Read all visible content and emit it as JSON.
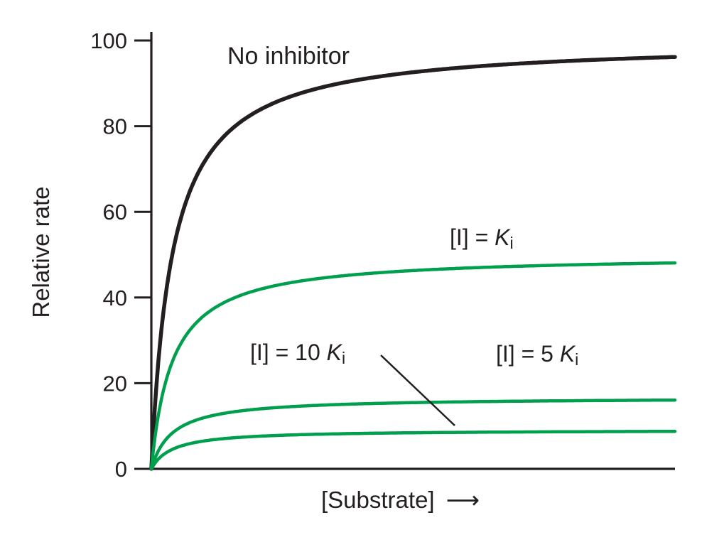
{
  "chart_data": {
    "type": "line",
    "title": "",
    "xlabel": "[Substrate]",
    "xlabel_arrow": "⟶",
    "ylabel": "Relative rate",
    "ylim": [
      0,
      100
    ],
    "yticks": [
      0,
      20,
      40,
      60,
      80,
      100
    ],
    "x_range": [
      0,
      10
    ],
    "grid": false,
    "legend_position": "inline-annotations",
    "model": "michaelis_menten",
    "km": 0.4,
    "x_samples": [
      0,
      0.1,
      0.2,
      0.3,
      0.5,
      0.75,
      1,
      1.5,
      2,
      3,
      4,
      5,
      6,
      7,
      8,
      9,
      10
    ],
    "series": [
      {
        "id": "no-inhibitor",
        "name": "No inhibitor",
        "vmax": 100,
        "color": "#231f20",
        "stroke_width": 5.5,
        "values": [
          0,
          20,
          33.3,
          42.9,
          55.6,
          65.2,
          71.4,
          78.9,
          83.3,
          88.2,
          90.9,
          92.6,
          93.8,
          94.6,
          95.2,
          95.7,
          96.2
        ]
      },
      {
        "id": "ki",
        "name": "[I] = Ki",
        "vmax": 50,
        "color": "#009f4d",
        "stroke_width": 4.5,
        "values": [
          0,
          10,
          16.7,
          21.4,
          27.8,
          32.6,
          35.7,
          39.5,
          41.7,
          44.1,
          45.5,
          46.3,
          46.9,
          47.3,
          47.6,
          47.9,
          48.1
        ]
      },
      {
        "id": "ki5",
        "name": "[I] = 5 Ki",
        "vmax": 16.7,
        "color": "#009f4d",
        "stroke_width": 4.5,
        "values": [
          0,
          3.3,
          5.6,
          7.1,
          9.3,
          10.9,
          11.9,
          13.2,
          13.9,
          14.7,
          15.2,
          15.4,
          15.6,
          15.8,
          15.9,
          16,
          16
        ]
      },
      {
        "id": "ki10",
        "name": "[I] = 10 Ki",
        "vmax": 9.1,
        "color": "#009f4d",
        "stroke_width": 4.5,
        "values": [
          0,
          1.8,
          3,
          3.9,
          5.1,
          5.9,
          6.5,
          7.2,
          7.6,
          8,
          8.3,
          8.4,
          8.5,
          8.6,
          8.7,
          8.7,
          8.7
        ]
      }
    ],
    "annotations": {
      "no_inhibitor": "No inhibitor",
      "ki": {
        "prefix": "[I] = ",
        "symbol": "K",
        "subscript": "i"
      },
      "ki5": {
        "prefix": "[I] = 5 ",
        "symbol": "K",
        "subscript": "i"
      },
      "ki10": {
        "prefix": "[I] = 10 ",
        "symbol": "K",
        "subscript": "i"
      }
    },
    "colors": {
      "axis": "#231f20",
      "curve_black": "#231f20",
      "curve_green": "#009f4d",
      "background": "#ffffff"
    }
  }
}
